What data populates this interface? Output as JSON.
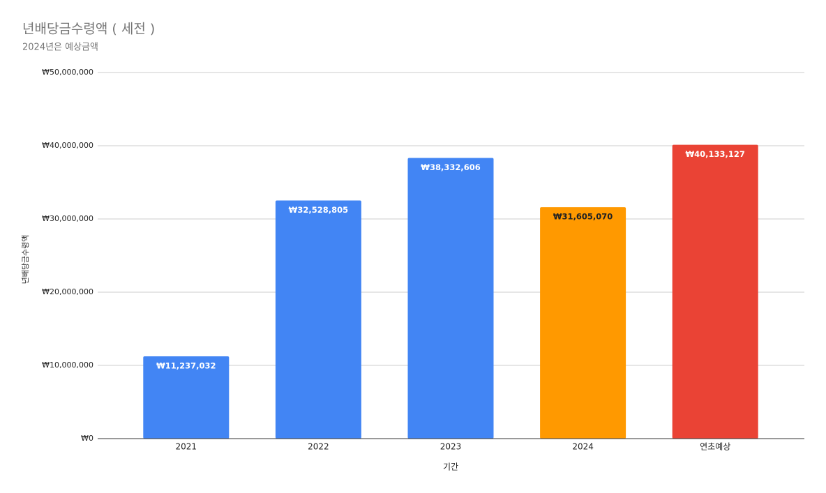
{
  "chart_data": {
    "type": "bar",
    "title": "년배당금수령액 ( 세전 )",
    "subtitle": "2024년은 예상금액",
    "x_label": "기간",
    "y_label": "년배당금수령액",
    "categories": [
      "2021",
      "2022",
      "2023",
      "2024",
      "연초예상"
    ],
    "values": [
      11237032,
      32528805,
      38332606,
      31605070,
      40133127
    ],
    "value_labels": [
      "₩11,237,032",
      "₩32,528,805",
      "₩38,332,606",
      "₩31,605,070",
      "₩40,133,127"
    ],
    "colors": [
      "#4285f4",
      "#4285f4",
      "#4285f4",
      "#ff9900",
      "#ea4335"
    ],
    "value_label_colors": [
      "#ffffff",
      "#ffffff",
      "#ffffff",
      "#222222",
      "#ffffff"
    ],
    "ylim": [
      0,
      50000000
    ],
    "yticks": [
      {
        "value": 0,
        "label": "₩0"
      },
      {
        "value": 10000000,
        "label": "₩10,000,000"
      },
      {
        "value": 20000000,
        "label": "₩20,000,000"
      },
      {
        "value": 30000000,
        "label": "₩30,000,000"
      },
      {
        "value": 40000000,
        "label": "₩40,000,000"
      },
      {
        "value": 50000000,
        "label": "₩50,000,000"
      }
    ],
    "grid": true
  }
}
